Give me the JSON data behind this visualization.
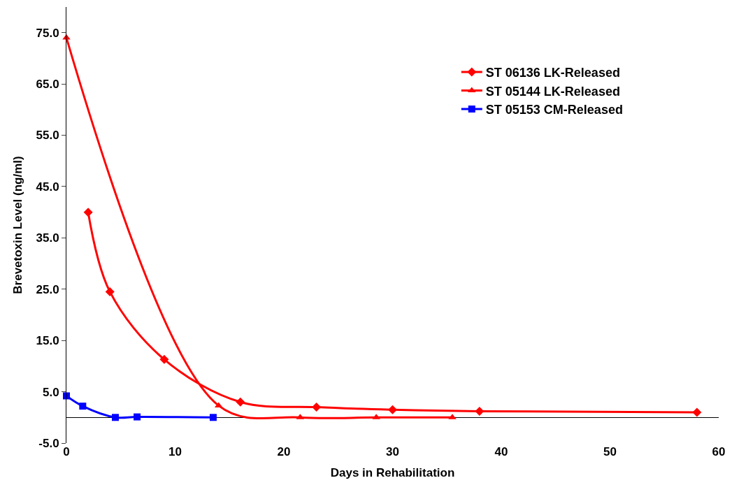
{
  "chart_data": {
    "type": "line",
    "xlabel": "Days in Rehabilitation",
    "ylabel": "Brevetoxin Level (ng/ml)",
    "xlim": [
      0,
      60
    ],
    "xticks": [
      0,
      10,
      20,
      30,
      40,
      50,
      60
    ],
    "ylim": [
      -5,
      80
    ],
    "yticks": [
      {
        "value": -5,
        "label": "-5.0"
      },
      {
        "value": 5,
        "label": "5.0"
      },
      {
        "value": 15,
        "label": "15.0"
      },
      {
        "value": 25,
        "label": "25.0"
      },
      {
        "value": 35,
        "label": "35.0"
      },
      {
        "value": 45,
        "label": "45.0"
      },
      {
        "value": 55,
        "label": "55.0"
      },
      {
        "value": 65,
        "label": "65.0"
      },
      {
        "value": 75,
        "label": "75.0"
      }
    ],
    "legend": "top right",
    "series": [
      {
        "name": "ST 06136 LK-Released",
        "color": "#ff0000",
        "marker": "diamond",
        "x": [
          2,
          4,
          9,
          16,
          23,
          30,
          38,
          58
        ],
        "values": [
          40,
          24.5,
          11.3,
          3,
          2,
          1.5,
          1.2,
          1
        ]
      },
      {
        "name": "ST 05144 LK-Released",
        "color": "#ff0000",
        "marker": "triangle",
        "x": [
          0,
          14,
          21.5,
          28.5,
          35.5
        ],
        "values": [
          74,
          2.3,
          0,
          0,
          0
        ]
      },
      {
        "name": "ST 05153 CM-Released",
        "color": "#0000ff",
        "marker": "square",
        "x": [
          0,
          1.5,
          4.5,
          6.5,
          13.5
        ],
        "values": [
          4.2,
          2.2,
          0,
          0.1,
          0
        ]
      }
    ]
  }
}
